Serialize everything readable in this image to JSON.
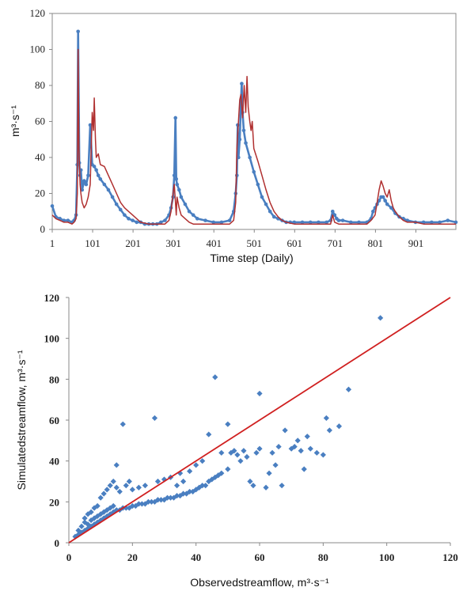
{
  "chart_data": [
    {
      "type": "line",
      "xlabel": "Time step (Daily)",
      "ylabel": "m³·s⁻¹",
      "ylim": [
        0,
        120
      ],
      "xlim": [
        1,
        1000
      ],
      "yticks": [
        "0",
        "20",
        "40",
        "60",
        "80",
        "100",
        "120"
      ],
      "xticks": [
        "1",
        "101",
        "201",
        "301",
        "401",
        "501",
        "601",
        "701",
        "801",
        "901"
      ],
      "grid": false,
      "colors": {
        "observed": "#4a7fc1",
        "simulated": "#b03030"
      },
      "series": [
        {
          "role": "observed",
          "x": [
            1,
            10,
            20,
            30,
            40,
            50,
            55,
            60,
            63,
            65,
            68,
            70,
            72,
            75,
            80,
            85,
            90,
            95,
            100,
            105,
            110,
            115,
            120,
            130,
            140,
            150,
            160,
            170,
            180,
            190,
            200,
            210,
            220,
            230,
            240,
            250,
            260,
            270,
            280,
            290,
            295,
            300,
            303,
            306,
            308,
            310,
            315,
            320,
            330,
            340,
            350,
            360,
            380,
            400,
            420,
            440,
            450,
            455,
            458,
            460,
            462,
            465,
            468,
            470,
            472,
            475,
            480,
            490,
            500,
            510,
            520,
            530,
            540,
            550,
            560,
            570,
            580,
            590,
            600,
            620,
            640,
            660,
            680,
            690,
            695,
            700,
            705,
            710,
            720,
            740,
            760,
            780,
            790,
            795,
            800,
            805,
            810,
            815,
            820,
            825,
            830,
            840,
            850,
            860,
            870,
            880,
            900,
            920,
            940,
            960,
            980,
            1000
          ],
          "y": [
            13,
            7,
            6,
            5,
            5,
            4,
            5,
            8,
            36,
            110,
            37,
            30,
            33,
            22,
            27,
            25,
            30,
            58,
            36,
            35,
            33,
            30,
            28,
            25,
            22,
            18,
            14,
            11,
            8,
            6,
            5,
            4,
            4,
            3,
            3,
            3,
            3,
            4,
            5,
            8,
            12,
            18,
            30,
            62,
            28,
            25,
            22,
            18,
            14,
            10,
            8,
            6,
            5,
            4,
            4,
            5,
            10,
            20,
            30,
            58,
            40,
            50,
            70,
            81,
            65,
            55,
            48,
            40,
            32,
            25,
            18,
            14,
            10,
            7,
            6,
            5,
            4,
            4,
            4,
            4,
            4,
            4,
            4,
            5,
            10,
            8,
            6,
            5,
            5,
            4,
            4,
            4,
            6,
            10,
            12,
            14,
            16,
            18,
            18,
            16,
            14,
            12,
            9,
            7,
            6,
            5,
            4,
            4,
            4,
            4,
            5,
            4
          ]
        },
        {
          "role": "simulated",
          "x": [
            1,
            10,
            20,
            30,
            40,
            50,
            55,
            60,
            63,
            65,
            67,
            70,
            72,
            75,
            80,
            85,
            90,
            95,
            100,
            103,
            105,
            108,
            110,
            115,
            120,
            130,
            140,
            150,
            160,
            170,
            180,
            190,
            200,
            210,
            220,
            240,
            260,
            280,
            290,
            295,
            300,
            303,
            306,
            308,
            310,
            315,
            320,
            330,
            340,
            350,
            360,
            380,
            400,
            420,
            440,
            450,
            455,
            458,
            462,
            465,
            468,
            472,
            476,
            480,
            483,
            486,
            490,
            493,
            496,
            500,
            510,
            520,
            530,
            540,
            550,
            560,
            570,
            580,
            600,
            620,
            640,
            660,
            690,
            695,
            700,
            710,
            740,
            780,
            790,
            800,
            805,
            810,
            815,
            820,
            825,
            830,
            835,
            840,
            845,
            850,
            860,
            870,
            880,
            900,
            920,
            960,
            1000
          ],
          "y": [
            8,
            6,
            5,
            4,
            4,
            3,
            4,
            6,
            20,
            100,
            45,
            25,
            20,
            15,
            12,
            14,
            18,
            25,
            65,
            55,
            73,
            50,
            40,
            42,
            36,
            35,
            30,
            25,
            20,
            15,
            12,
            10,
            8,
            6,
            4,
            3,
            3,
            3,
            5,
            10,
            20,
            25,
            15,
            8,
            18,
            12,
            8,
            6,
            4,
            3,
            3,
            3,
            3,
            3,
            3,
            5,
            15,
            45,
            60,
            72,
            75,
            62,
            80,
            65,
            85,
            68,
            60,
            55,
            60,
            45,
            38,
            30,
            22,
            15,
            10,
            7,
            5,
            4,
            3,
            3,
            3,
            3,
            3,
            8,
            4,
            3,
            3,
            3,
            5,
            8,
            15,
            22,
            27,
            24,
            20,
            18,
            22,
            16,
            12,
            10,
            7,
            5,
            4,
            4,
            3,
            3,
            3
          ]
        }
      ]
    },
    {
      "type": "scatter",
      "xlabel": "Observedstreamflow, m³·s⁻¹",
      "ylabel": "Simulatedstreamflow, m³·s⁻¹",
      "xlim": [
        0,
        120
      ],
      "ylim": [
        0,
        120
      ],
      "xticks": [
        "0",
        "20",
        "40",
        "60",
        "80",
        "100",
        "120"
      ],
      "yticks": [
        "0",
        "20",
        "40",
        "60",
        "80",
        "100",
        "120"
      ],
      "grid": false,
      "colors": {
        "points": "#4a7fc1",
        "line": "#d02020"
      },
      "reference_line": {
        "x": [
          0,
          120
        ],
        "y": [
          0,
          120
        ]
      },
      "points": [
        [
          2,
          3
        ],
        [
          3,
          4
        ],
        [
          3,
          6
        ],
        [
          4,
          5
        ],
        [
          4,
          8
        ],
        [
          5,
          6
        ],
        [
          5,
          10
        ],
        [
          5,
          12
        ],
        [
          6,
          7
        ],
        [
          6,
          14
        ],
        [
          6,
          9
        ],
        [
          7,
          8
        ],
        [
          7,
          15
        ],
        [
          7,
          11
        ],
        [
          8,
          9
        ],
        [
          8,
          17
        ],
        [
          8,
          12
        ],
        [
          9,
          10
        ],
        [
          9,
          18
        ],
        [
          9,
          13
        ],
        [
          10,
          11
        ],
        [
          10,
          22
        ],
        [
          10,
          14
        ],
        [
          11,
          12
        ],
        [
          11,
          24
        ],
        [
          11,
          15
        ],
        [
          12,
          13
        ],
        [
          12,
          26
        ],
        [
          12,
          16
        ],
        [
          13,
          14
        ],
        [
          13,
          28
        ],
        [
          13,
          17
        ],
        [
          14,
          15
        ],
        [
          14,
          30
        ],
        [
          14,
          18
        ],
        [
          15,
          16
        ],
        [
          15,
          27
        ],
        [
          15,
          38
        ],
        [
          16,
          16
        ],
        [
          16,
          25
        ],
        [
          17,
          17
        ],
        [
          17,
          58
        ],
        [
          18,
          17
        ],
        [
          18,
          28
        ],
        [
          19,
          17
        ],
        [
          19,
          30
        ],
        [
          20,
          18
        ],
        [
          20,
          26
        ],
        [
          21,
          18
        ],
        [
          22,
          19
        ],
        [
          22,
          27
        ],
        [
          23,
          19
        ],
        [
          24,
          19
        ],
        [
          24,
          28
        ],
        [
          25,
          20
        ],
        [
          26,
          20
        ],
        [
          27,
          20
        ],
        [
          27,
          61
        ],
        [
          28,
          21
        ],
        [
          28,
          30
        ],
        [
          29,
          21
        ],
        [
          30,
          21
        ],
        [
          30,
          31
        ],
        [
          31,
          22
        ],
        [
          32,
          22
        ],
        [
          32,
          32
        ],
        [
          33,
          22
        ],
        [
          34,
          23
        ],
        [
          34,
          28
        ],
        [
          35,
          23
        ],
        [
          35,
          34
        ],
        [
          36,
          24
        ],
        [
          36,
          30
        ],
        [
          37,
          24
        ],
        [
          38,
          25
        ],
        [
          38,
          35
        ],
        [
          39,
          25
        ],
        [
          40,
          26
        ],
        [
          40,
          38
        ],
        [
          41,
          27
        ],
        [
          42,
          28
        ],
        [
          42,
          40
        ],
        [
          43,
          28
        ],
        [
          44,
          30
        ],
        [
          44,
          53
        ],
        [
          45,
          31
        ],
        [
          46,
          32
        ],
        [
          46,
          81
        ],
        [
          47,
          33
        ],
        [
          48,
          34
        ],
        [
          48,
          44
        ],
        [
          50,
          36
        ],
        [
          50,
          58
        ],
        [
          51,
          44
        ],
        [
          52,
          45
        ],
        [
          53,
          43
        ],
        [
          54,
          40
        ],
        [
          55,
          45
        ],
        [
          56,
          42
        ],
        [
          57,
          30
        ],
        [
          58,
          28
        ],
        [
          59,
          44
        ],
        [
          60,
          73
        ],
        [
          60,
          46
        ],
        [
          62,
          27
        ],
        [
          63,
          34
        ],
        [
          64,
          44
        ],
        [
          65,
          38
        ],
        [
          66,
          47
        ],
        [
          67,
          28
        ],
        [
          68,
          55
        ],
        [
          70,
          46
        ],
        [
          71,
          47
        ],
        [
          72,
          50
        ],
        [
          73,
          45
        ],
        [
          74,
          36
        ],
        [
          75,
          52
        ],
        [
          76,
          46
        ],
        [
          78,
          44
        ],
        [
          80,
          43
        ],
        [
          81,
          61
        ],
        [
          82,
          55
        ],
        [
          85,
          57
        ],
        [
          88,
          75
        ],
        [
          98,
          110
        ]
      ]
    }
  ]
}
